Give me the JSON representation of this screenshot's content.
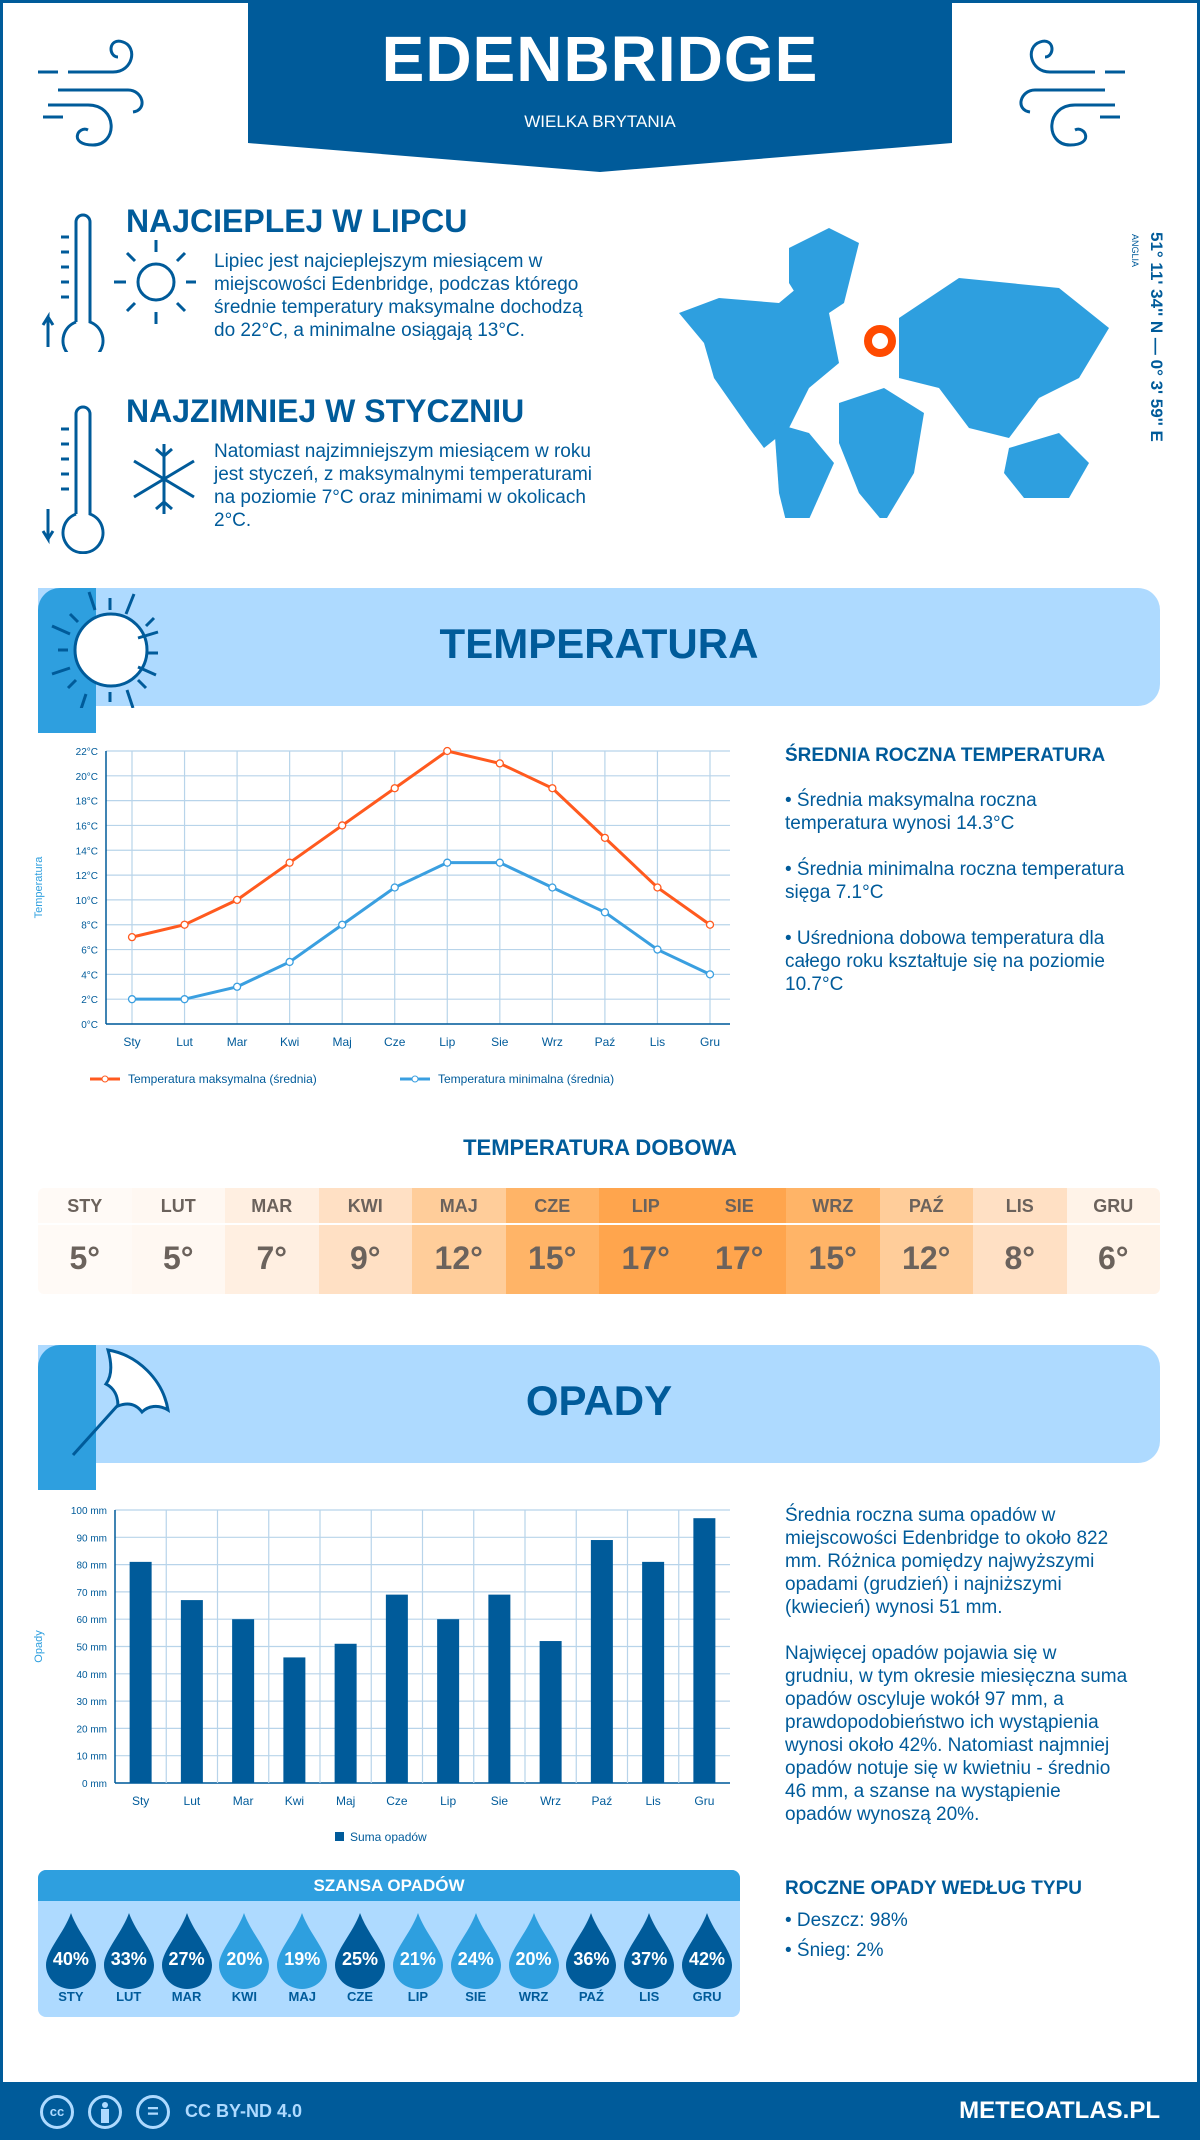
{
  "header": {
    "title": "EDENBRIDGE",
    "country": "WIELKA BRYTANIA"
  },
  "warmest": {
    "title": "NAJCIEPLEJ W LIPCU",
    "text": [
      "Lipiec jest najcieplejszym miesiącem w",
      "miejscowości Edenbridge, podczas którego",
      "średnie temperatury maksymalne dochodzą",
      "do 22°C, a minimalne osiągają 13°C."
    ]
  },
  "coldest": {
    "title": "NAJZIMNIEJ W STYCZNIU",
    "text": [
      "Natomiast najzimniejszym miesiącem w roku",
      "jest styczeń, z maksymalnymi temperaturami",
      "na poziomie 7°C oraz minimami w okolicach",
      "2°C."
    ]
  },
  "location": {
    "coords": "51° 11' 34'' N — 0° 3' 59'' E",
    "region": "ANGLIA"
  },
  "temp_section": {
    "title": "TEMPERATURA"
  },
  "temp_side": {
    "title": "ŚREDNIA ROCZNA TEMPERATURA",
    "bullets": [
      [
        "• Średnia maksymalna roczna",
        "temperatura wynosi 14.3°C"
      ],
      [
        "• Średnia minimalna roczna temperatura",
        "sięga 7.1°C"
      ],
      [
        "• Uśredniona dobowa temperatura dla",
        "całego roku kształtuje się na poziomie",
        "10.7°C"
      ]
    ]
  },
  "daily": {
    "title": "TEMPERATURA DOBOWA",
    "months": [
      "STY",
      "LUT",
      "MAR",
      "KWI",
      "MAJ",
      "CZE",
      "LIP",
      "SIE",
      "WRZ",
      "PAŹ",
      "LIS",
      "GRU"
    ],
    "values": [
      "5°",
      "5°",
      "7°",
      "9°",
      "12°",
      "15°",
      "17°",
      "17°",
      "15°",
      "12°",
      "8°",
      "6°"
    ],
    "colors": [
      "#fffaf6",
      "#fff8f2",
      "#ffefe1",
      "#ffe0c4",
      "#ffcd9a",
      "#ffb467",
      "#ffa54d",
      "#ffa54d",
      "#ffb467",
      "#ffcd9a",
      "#ffe0c4",
      "#fff3e8"
    ]
  },
  "precip_section": {
    "title": "OPADY"
  },
  "precip_side": {
    "p1": [
      "Średnia roczna suma opadów w",
      "miejscowości Edenbridge to około 822",
      "mm. Różnica pomiędzy najwyższymi",
      "opadami (grudzień) i najniższymi",
      "(kwiecień) wynosi 51 mm."
    ],
    "p2": [
      "Najwięcej opadów pojawia się w",
      "grudniu, w tym okresie miesięczna suma",
      "opadów oscyluje wokół 97 mm, a",
      "prawdopodobieństwo ich wystąpienia",
      "wynosi około 42%. Natomiast najmniej",
      "opadów notuje się w kwietniu - średnio",
      "46 mm, a szanse na wystąpienie",
      "opadów wynoszą 20%."
    ],
    "type_title": "ROCZNE OPADY WEDŁUG TYPU",
    "types": [
      "• Deszcz: 98%",
      "• Śnieg: 2%"
    ]
  },
  "chance": {
    "title": "SZANSA OPADÓW",
    "months": [
      "STY",
      "LUT",
      "MAR",
      "KWI",
      "MAJ",
      "CZE",
      "LIP",
      "SIE",
      "WRZ",
      "PAŹ",
      "LIS",
      "GRU"
    ],
    "values": [
      40,
      33,
      27,
      20,
      19,
      25,
      21,
      24,
      20,
      36,
      37,
      42
    ],
    "dark_color": "#005b9a",
    "light_color": "#2e9fdf"
  },
  "footer": {
    "license": "CC BY-ND 4.0",
    "site": "METEOATLAS.PL",
    "cc": "cc",
    "eq": "="
  },
  "chart_data": [
    {
      "type": "line",
      "categories": [
        "Sty",
        "Lut",
        "Mar",
        "Kwi",
        "Maj",
        "Cze",
        "Lip",
        "Sie",
        "Wrz",
        "Paź",
        "Lis",
        "Gru"
      ],
      "series": [
        {
          "name": "Temperatura maksymalna (średnia)",
          "values": [
            7,
            8,
            10,
            13,
            16,
            19,
            22,
            21,
            19,
            15,
            11,
            8
          ],
          "color": "#ff5a1f"
        },
        {
          "name": "Temperatura minimalna (średnia)",
          "values": [
            2,
            2,
            3,
            5,
            8,
            11,
            13,
            13,
            11,
            9,
            6,
            4
          ],
          "color": "#3a9fe0"
        }
      ],
      "ylabel": "Temperatura",
      "ylim": [
        0,
        22
      ],
      "yticks": [
        "0°C",
        "2°C",
        "4°C",
        "6°C",
        "8°C",
        "10°C",
        "12°C",
        "14°C",
        "16°C",
        "18°C",
        "20°C",
        "22°C"
      ],
      "grid": true,
      "legend": "bottom"
    },
    {
      "type": "bar",
      "categories": [
        "Sty",
        "Lut",
        "Mar",
        "Kwi",
        "Maj",
        "Cze",
        "Lip",
        "Sie",
        "Wrz",
        "Paź",
        "Lis",
        "Gru"
      ],
      "series": [
        {
          "name": "Suma opadów",
          "values": [
            81,
            67,
            60,
            46,
            51,
            69,
            60,
            69,
            52,
            89,
            81,
            97
          ],
          "color": "#005b9a"
        }
      ],
      "ylabel": "Opady",
      "ylim": [
        0,
        100
      ],
      "yticks": [
        "0 mm",
        "10 mm",
        "20 mm",
        "30 mm",
        "40 mm",
        "50 mm",
        "60 mm",
        "70 mm",
        "80 mm",
        "90 mm",
        "100 mm"
      ],
      "grid": true,
      "legend": "bottom"
    }
  ]
}
